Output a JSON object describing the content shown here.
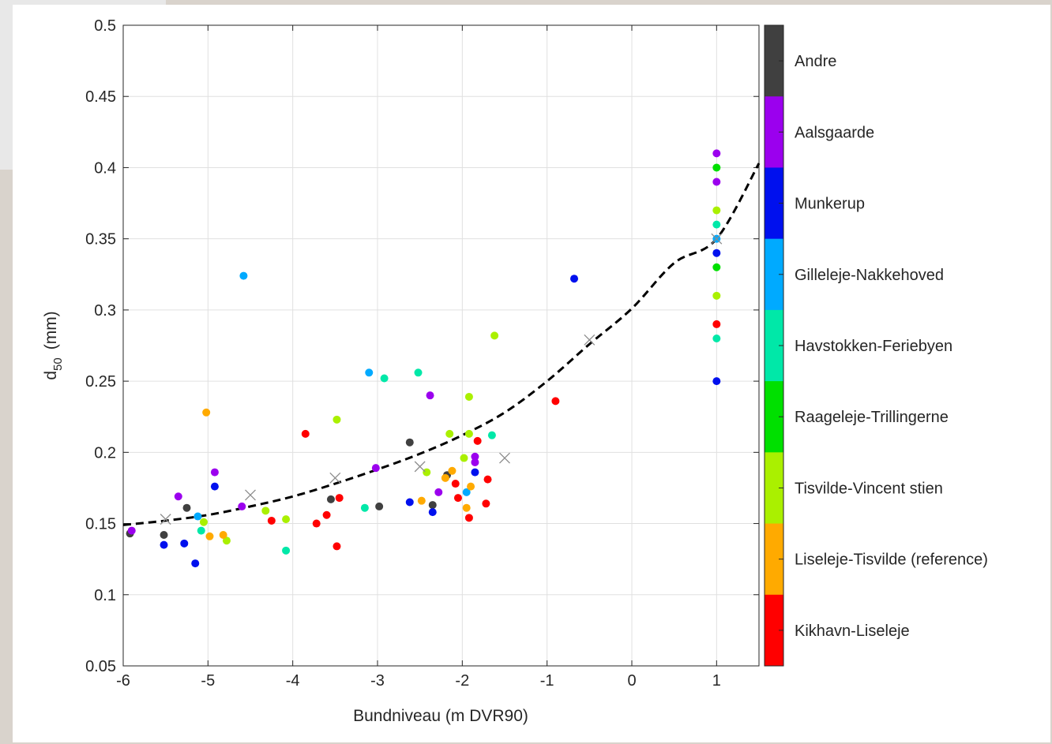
{
  "chart_data": {
    "type": "scatter",
    "xlabel": "Bundniveau (m DVR90)",
    "ylabel_main": "d",
    "ylabel_sub": "50",
    "ylabel_unit": "(mm)",
    "xlim": [
      -6,
      1.5
    ],
    "ylim": [
      0.05,
      0.5
    ],
    "grid": true,
    "x_ticks": [
      -6,
      -5,
      -4,
      -3,
      -2,
      -1,
      0,
      1
    ],
    "x_tick_labels": [
      "-6",
      "-5",
      "-4",
      "-3",
      "-2",
      "-1",
      "0",
      "1"
    ],
    "y_ticks": [
      0.05,
      0.1,
      0.15,
      0.2,
      0.25,
      0.3,
      0.35,
      0.4,
      0.45,
      0.5
    ],
    "y_tick_labels": [
      "0.05",
      "0.1",
      "0.15",
      "0.2",
      "0.25",
      "0.3",
      "0.35",
      "0.4",
      "0.45",
      "0.5"
    ],
    "colorbar": {
      "placement": "right",
      "categories": [
        {
          "label": "Andre",
          "color": "#404040"
        },
        {
          "label": "Aalsgaarde",
          "color": "#9b00ee"
        },
        {
          "label": "Munkerup",
          "color": "#0010ee"
        },
        {
          "label": "Gilleleje-Nakkehoved",
          "color": "#00aaff"
        },
        {
          "label": "Havstokken-Feriebyen",
          "color": "#00e8a8"
        },
        {
          "label": "Raageleje-Trillingerne",
          "color": "#00e000"
        },
        {
          "label": "Tisvilde-Vincent stien",
          "color": "#aaf000"
        },
        {
          "label": "Liseleje-Tisvilde (reference)",
          "color": "#ffaa00"
        },
        {
          "label": "Kikhavn-Liseleje",
          "color": "#ff0000"
        }
      ]
    },
    "series": [
      {
        "group": "Andre",
        "color": "#404040",
        "points": [
          [
            -5.92,
            0.143
          ],
          [
            -5.52,
            0.142
          ],
          [
            -5.25,
            0.161
          ],
          [
            -3.55,
            0.167
          ],
          [
            -2.98,
            0.162
          ],
          [
            -2.62,
            0.207
          ],
          [
            -2.35,
            0.163
          ],
          [
            -2.18,
            0.184
          ]
        ]
      },
      {
        "group": "Aalsgaarde",
        "color": "#9b00ee",
        "points": [
          [
            -5.9,
            0.145
          ],
          [
            -5.35,
            0.169
          ],
          [
            -4.92,
            0.186
          ],
          [
            -4.6,
            0.162
          ],
          [
            -3.02,
            0.189
          ],
          [
            -2.38,
            0.24
          ],
          [
            -2.28,
            0.172
          ],
          [
            -1.85,
            0.197
          ],
          [
            -1.85,
            0.193
          ],
          [
            1,
            0.41
          ],
          [
            1,
            0.39
          ]
        ]
      },
      {
        "group": "Munkerup",
        "color": "#0010ee",
        "points": [
          [
            -5.52,
            0.135
          ],
          [
            -5.28,
            0.136
          ],
          [
            -5.15,
            0.122
          ],
          [
            -4.92,
            0.176
          ],
          [
            -2.62,
            0.165
          ],
          [
            -2.35,
            0.158
          ],
          [
            -1.85,
            0.186
          ],
          [
            -0.68,
            0.322
          ],
          [
            1,
            0.34
          ],
          [
            1,
            0.25
          ]
        ]
      },
      {
        "group": "Gilleleje-Nakkehoved",
        "color": "#00aaff",
        "points": [
          [
            -4.58,
            0.324
          ],
          [
            -5.12,
            0.155
          ],
          [
            -3.1,
            0.256
          ],
          [
            -1.95,
            0.172
          ],
          [
            1,
            0.35
          ]
        ]
      },
      {
        "group": "Havstokken-Feriebyen",
        "color": "#00e8a8",
        "points": [
          [
            -5.08,
            0.145
          ],
          [
            -4.08,
            0.131
          ],
          [
            -3.15,
            0.161
          ],
          [
            -2.92,
            0.252
          ],
          [
            -2.52,
            0.256
          ],
          [
            -1.65,
            0.212
          ],
          [
            1,
            0.36
          ],
          [
            1,
            0.28
          ]
        ]
      },
      {
        "group": "Raageleje-Trillingerne",
        "color": "#00e000",
        "points": [
          [
            1,
            0.4
          ],
          [
            1,
            0.33
          ]
        ]
      },
      {
        "group": "Tisvilde-Vincent stien",
        "color": "#aaf000",
        "points": [
          [
            -5.05,
            0.151
          ],
          [
            -4.78,
            0.138
          ],
          [
            -4.32,
            0.159
          ],
          [
            -4.08,
            0.153
          ],
          [
            -3.48,
            0.223
          ],
          [
            -2.42,
            0.186
          ],
          [
            -2.15,
            0.213
          ],
          [
            -1.98,
            0.196
          ],
          [
            -1.92,
            0.213
          ],
          [
            -1.92,
            0.239
          ],
          [
            -1.62,
            0.282
          ],
          [
            1,
            0.37
          ],
          [
            1,
            0.31
          ]
        ]
      },
      {
        "group": "Liseleje-Tisvilde (reference)",
        "color": "#ffaa00",
        "points": [
          [
            -5.02,
            0.228
          ],
          [
            -4.98,
            0.141
          ],
          [
            -4.82,
            0.142
          ],
          [
            -2.48,
            0.166
          ],
          [
            -2.2,
            0.182
          ],
          [
            -2.12,
            0.187
          ],
          [
            -1.95,
            0.161
          ],
          [
            -1.9,
            0.176
          ]
        ]
      },
      {
        "group": "Kikhavn-Liseleje",
        "color": "#ff0000",
        "points": [
          [
            -4.25,
            0.152
          ],
          [
            -3.85,
            0.213
          ],
          [
            -3.72,
            0.15
          ],
          [
            -3.6,
            0.156
          ],
          [
            -3.48,
            0.134
          ],
          [
            -3.45,
            0.168
          ],
          [
            -2.08,
            0.178
          ],
          [
            -2.05,
            0.168
          ],
          [
            -1.92,
            0.154
          ],
          [
            -1.82,
            0.208
          ],
          [
            -1.72,
            0.164
          ],
          [
            -1.7,
            0.181
          ],
          [
            -0.9,
            0.236
          ],
          [
            1,
            0.29
          ]
        ]
      }
    ],
    "mean_markers": [
      [
        -5.5,
        0.153
      ],
      [
        -4.5,
        0.17
      ],
      [
        -3.5,
        0.182
      ],
      [
        -2.5,
        0.19
      ],
      [
        -1.5,
        0.196
      ],
      [
        -0.5,
        0.279
      ],
      [
        1,
        0.35
      ]
    ],
    "trend_curve": {
      "style": "dashed",
      "points": [
        [
          -6,
          0.149
        ],
        [
          -5.5,
          0.152
        ],
        [
          -5,
          0.156
        ],
        [
          -4.5,
          0.162
        ],
        [
          -4,
          0.169
        ],
        [
          -3.5,
          0.178
        ],
        [
          -3,
          0.188
        ],
        [
          -2.5,
          0.199
        ],
        [
          -2,
          0.212
        ],
        [
          -1.5,
          0.228
        ],
        [
          -1,
          0.25
        ],
        [
          -0.5,
          0.276
        ],
        [
          0,
          0.301
        ],
        [
          0.5,
          0.333
        ],
        [
          1,
          0.35
        ],
        [
          1.5,
          0.403
        ]
      ]
    }
  }
}
